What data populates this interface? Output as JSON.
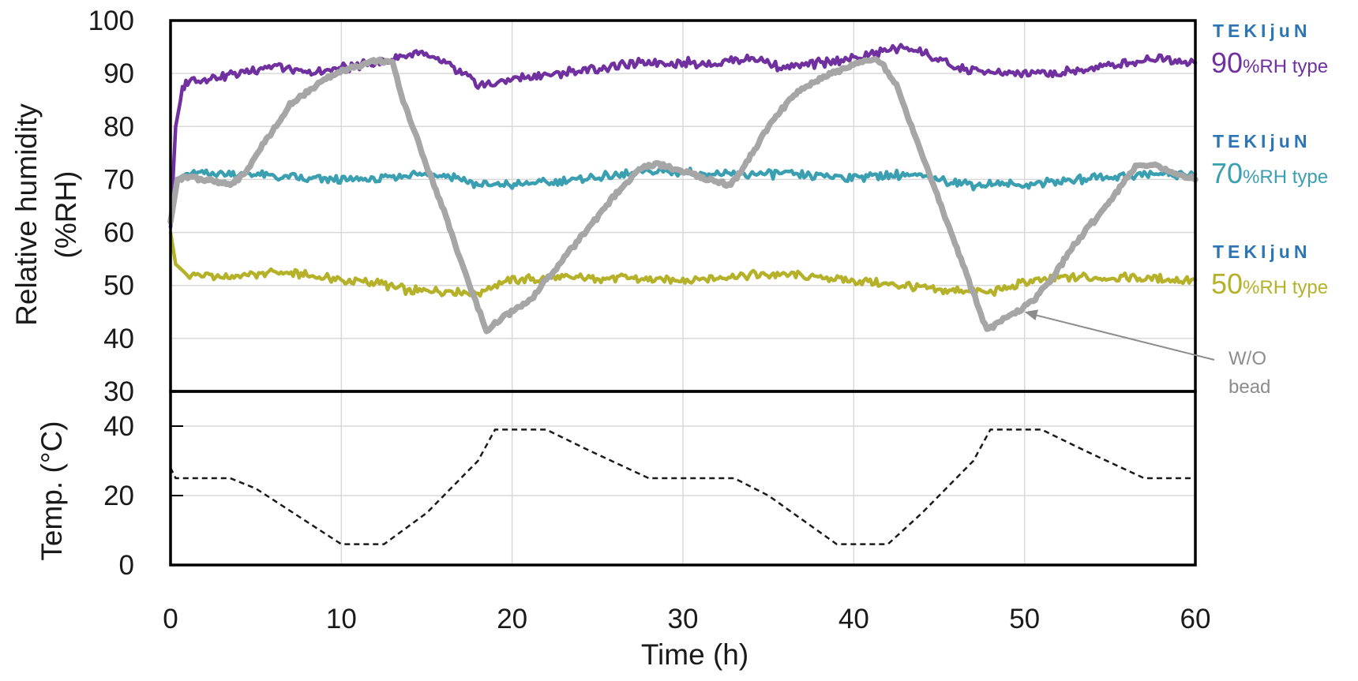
{
  "chart_data": [
    {
      "panel": "humidity",
      "type": "line",
      "xlabel": "Time (h)",
      "ylabel_line1": "Relative humidity",
      "ylabel_line2": "(%RH)",
      "xlim": [
        0,
        60
      ],
      "ylim": [
        30,
        100
      ],
      "x_ticks": [
        "0",
        "10",
        "20",
        "30",
        "40",
        "50",
        "60"
      ],
      "y_ticks": [
        "100",
        "90",
        "80",
        "70",
        "60",
        "50",
        "40",
        "30"
      ],
      "grid": true,
      "series": [
        {
          "key": "rh90",
          "brand": "TEKIjuN",
          "value_label": "90",
          "unit_label": "%RH type",
          "color": "#7030a0",
          "points": [
            [
              0,
              61
            ],
            [
              0.3,
              80
            ],
            [
              0.7,
              87
            ],
            [
              1,
              88.5
            ],
            [
              2,
              89
            ],
            [
              4,
              90
            ],
            [
              6,
              91.5
            ],
            [
              8,
              90
            ],
            [
              10,
              91
            ],
            [
              12,
              92
            ],
            [
              14.5,
              94
            ],
            [
              16,
              92
            ],
            [
              18,
              88
            ],
            [
              19,
              88
            ],
            [
              20,
              89
            ],
            [
              25,
              91
            ],
            [
              28,
              92
            ],
            [
              32,
              92
            ],
            [
              34,
              93
            ],
            [
              36,
              91
            ],
            [
              40,
              93
            ],
            [
              43,
              95
            ],
            [
              44,
              94
            ],
            [
              46,
              91
            ],
            [
              48,
              90
            ],
            [
              52,
              90
            ],
            [
              56,
              92
            ],
            [
              58,
              93
            ],
            [
              60,
              92
            ]
          ]
        },
        {
          "key": "rh70",
          "brand": "TEKIjuN",
          "value_label": "70",
          "unit_label": "%RH type",
          "color": "#3a9fb0",
          "points": [
            [
              0,
              61
            ],
            [
              0.3,
              70
            ],
            [
              1,
              71
            ],
            [
              5,
              71
            ],
            [
              8,
              70
            ],
            [
              12,
              70
            ],
            [
              14,
              71
            ],
            [
              16,
              71
            ],
            [
              18,
              69
            ],
            [
              20,
              69
            ],
            [
              24,
              70
            ],
            [
              28,
              71.5
            ],
            [
              32,
              71
            ],
            [
              36,
              71
            ],
            [
              40,
              70.5
            ],
            [
              43,
              71
            ],
            [
              45,
              70
            ],
            [
              47,
              69
            ],
            [
              50,
              69
            ],
            [
              53,
              70
            ],
            [
              57,
              71
            ],
            [
              60,
              71
            ]
          ]
        },
        {
          "key": "rh50",
          "brand": "TEKIjuN",
          "value_label": "50",
          "unit_label": "%RH type",
          "color": "#b5b22a",
          "points": [
            [
              0,
              60
            ],
            [
              0.3,
              54
            ],
            [
              1,
              52
            ],
            [
              3,
              51.5
            ],
            [
              6,
              52.5
            ],
            [
              8,
              52
            ],
            [
              10,
              51
            ],
            [
              12,
              50.5
            ],
            [
              14,
              49
            ],
            [
              16,
              49
            ],
            [
              18,
              48.5
            ],
            [
              19,
              50
            ],
            [
              20,
              51
            ],
            [
              24,
              51.5
            ],
            [
              30,
              51
            ],
            [
              34,
              52
            ],
            [
              36,
              52
            ],
            [
              40,
              51
            ],
            [
              43,
              50
            ],
            [
              45,
              49
            ],
            [
              47,
              49
            ],
            [
              48,
              48.5
            ],
            [
              50,
              50.5
            ],
            [
              52,
              51.5
            ],
            [
              56,
              51.5
            ],
            [
              60,
              51
            ]
          ]
        },
        {
          "key": "wo",
          "color": "#a6a6a6",
          "points": [
            [
              0,
              62
            ],
            [
              0.4,
              70
            ],
            [
              1,
              70.5
            ],
            [
              2,
              70
            ],
            [
              3.5,
              69
            ],
            [
              4.3,
              71
            ],
            [
              5.5,
              77
            ],
            [
              7,
              84
            ],
            [
              9,
              89
            ],
            [
              10.5,
              91
            ],
            [
              12,
              92.5
            ],
            [
              13,
              92
            ],
            [
              13.5,
              86
            ],
            [
              14.5,
              77
            ],
            [
              16,
              64
            ],
            [
              17.5,
              50
            ],
            [
              18.5,
              41.5
            ],
            [
              19.5,
              44
            ],
            [
              21,
              47
            ],
            [
              22,
              51
            ],
            [
              24,
              59
            ],
            [
              26,
              67
            ],
            [
              27.5,
              72
            ],
            [
              28.5,
              73
            ],
            [
              30,
              71.5
            ],
            [
              31.5,
              70
            ],
            [
              32.8,
              69
            ],
            [
              33.5,
              72
            ],
            [
              35,
              80
            ],
            [
              36.5,
              86
            ],
            [
              38,
              89
            ],
            [
              39.5,
              91
            ],
            [
              40.5,
              92.5
            ],
            [
              41.5,
              92.5
            ],
            [
              42.5,
              88
            ],
            [
              43.5,
              79
            ],
            [
              45,
              66
            ],
            [
              46.5,
              53
            ],
            [
              47.8,
              41.5
            ],
            [
              49,
              44
            ],
            [
              50.5,
              47
            ],
            [
              51.5,
              51
            ],
            [
              53,
              58
            ],
            [
              55,
              66
            ],
            [
              56.5,
              72.5
            ],
            [
              57.5,
              73
            ],
            [
              58.5,
              71.5
            ],
            [
              60,
              70
            ]
          ]
        }
      ],
      "annotation": {
        "line1": "W/O",
        "line2": "bead",
        "points_to": [
          50,
          45
        ]
      }
    },
    {
      "panel": "temperature",
      "type": "line",
      "ylabel": "Temp. (°C)",
      "xlim": [
        0,
        60
      ],
      "ylim": [
        0,
        50
      ],
      "y_ticks": [
        "40",
        "20",
        "0"
      ],
      "series": [
        {
          "key": "temp",
          "color": "#1a1a1a",
          "dashed": true,
          "points": [
            [
              0,
              28
            ],
            [
              0.3,
              25
            ],
            [
              3.5,
              25
            ],
            [
              5,
              22
            ],
            [
              10,
              6
            ],
            [
              12.5,
              6
            ],
            [
              15,
              15
            ],
            [
              18,
              30
            ],
            [
              19,
              39
            ],
            [
              22,
              39
            ],
            [
              24.5,
              33
            ],
            [
              28,
              25
            ],
            [
              33,
              25
            ],
            [
              35,
              20
            ],
            [
              39,
              6
            ],
            [
              42,
              6
            ],
            [
              44,
              15
            ],
            [
              47,
              30
            ],
            [
              48,
              39
            ],
            [
              51,
              39
            ],
            [
              53.5,
              33
            ],
            [
              57,
              25
            ],
            [
              60,
              25
            ]
          ]
        }
      ]
    }
  ]
}
